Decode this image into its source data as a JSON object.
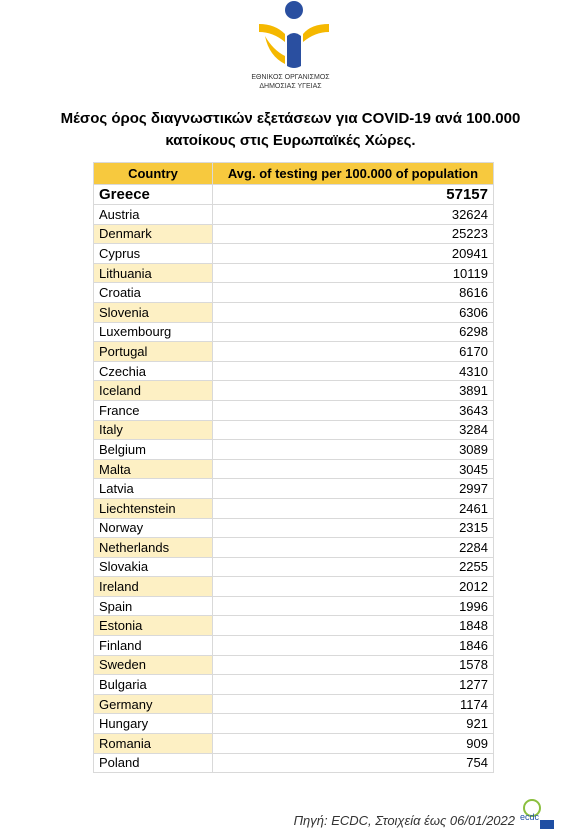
{
  "logo": {
    "line1": "ΕΘΝΙΚΟΣ ΟΡΓΑΝΙΣΜΟΣ",
    "line2": "ΔΗΜΟΣΙΑΣ ΥΓΕΙΑΣ"
  },
  "title": {
    "line1": "Μέσος όρος διαγνωστικών εξετάσεων για COVID-19 ανά 100.000",
    "line2": "κατοίκους στις Ευρωπαϊκές Χώρες."
  },
  "table": {
    "header": [
      "Country",
      "Avg. of testing per 100.000 of population"
    ],
    "rows": [
      [
        "Greece",
        57157
      ],
      [
        "Austria",
        32624
      ],
      [
        "Denmark",
        25223
      ],
      [
        "Cyprus",
        20941
      ],
      [
        "Lithuania",
        10119
      ],
      [
        "Croatia",
        8616
      ],
      [
        "Slovenia",
        6306
      ],
      [
        "Luxembourg",
        6298
      ],
      [
        "Portugal",
        6170
      ],
      [
        "Czechia",
        4310
      ],
      [
        "Iceland",
        3891
      ],
      [
        "France",
        3643
      ],
      [
        "Italy",
        3284
      ],
      [
        "Belgium",
        3089
      ],
      [
        "Malta",
        3045
      ],
      [
        "Latvia",
        2997
      ],
      [
        "Liechtenstein",
        2461
      ],
      [
        "Norway",
        2315
      ],
      [
        "Netherlands",
        2284
      ],
      [
        "Slovakia",
        2255
      ],
      [
        "Ireland",
        2012
      ],
      [
        "Spain",
        1996
      ],
      [
        "Estonia",
        1848
      ],
      [
        "Finland",
        1846
      ],
      [
        "Sweden",
        1578
      ],
      [
        "Bulgaria",
        1277
      ],
      [
        "Germany",
        1174
      ],
      [
        "Hungary",
        921
      ],
      [
        "Romania",
        909
      ],
      [
        "Poland",
        754
      ]
    ]
  },
  "footer": {
    "source": "Πηγή: ECDC, Στοιχεία έως 06/01/2022",
    "logo": "ecdc"
  }
}
